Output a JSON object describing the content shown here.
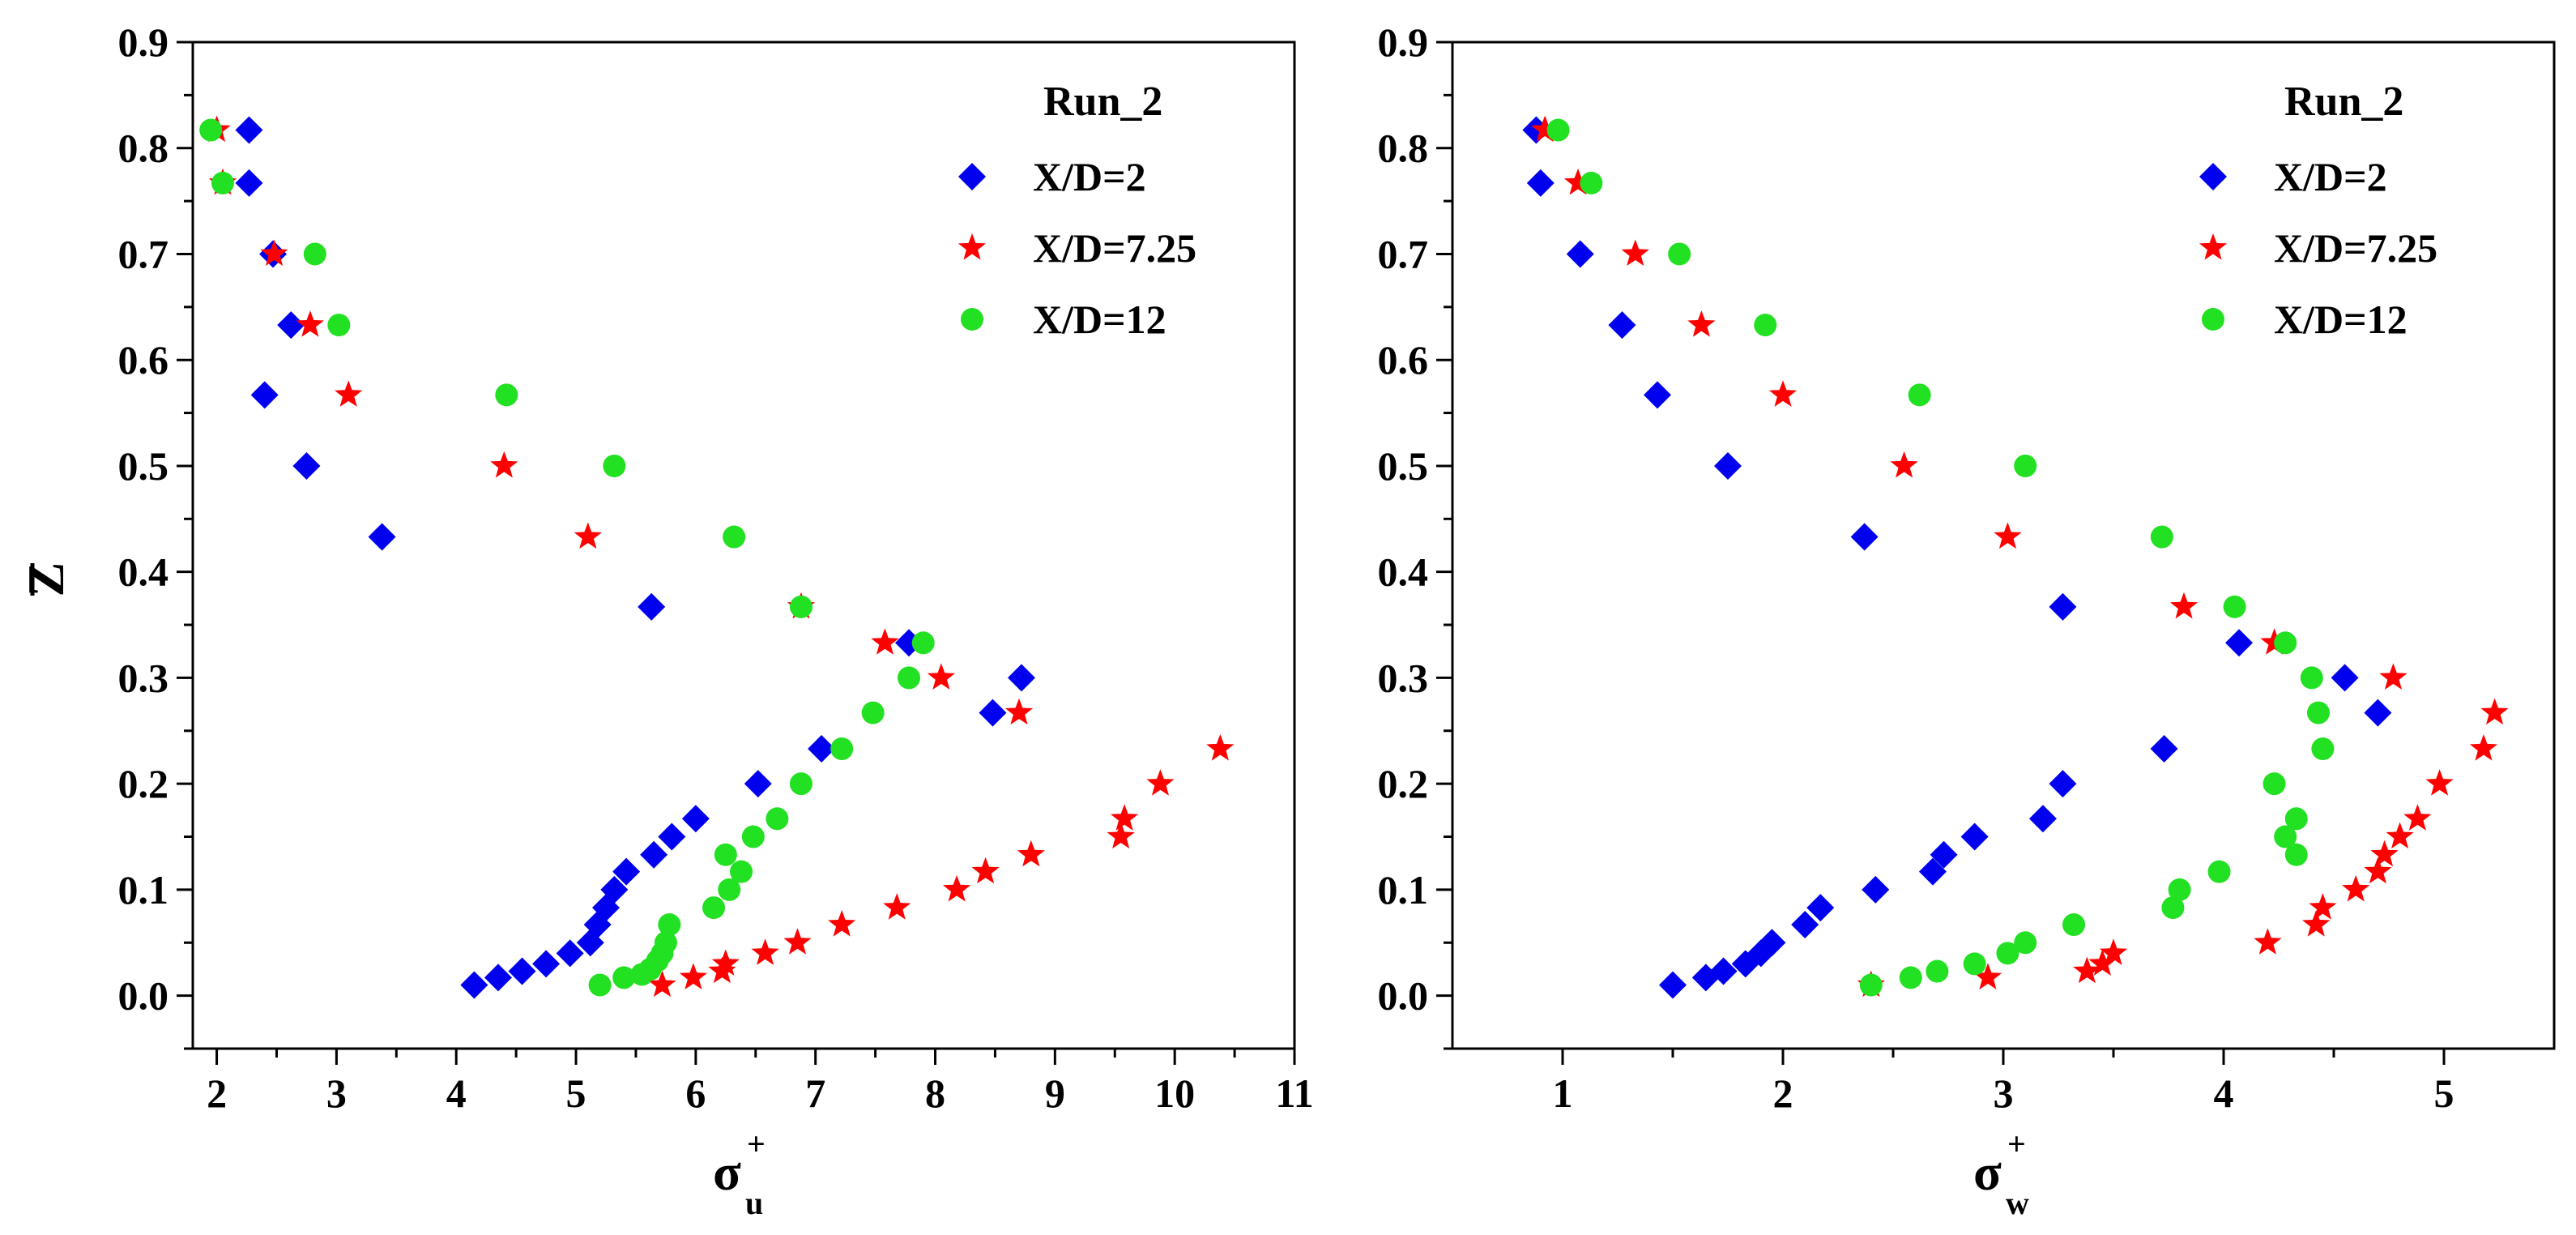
{
  "figure": {
    "run_label": "Run_2"
  },
  "chart_data": [
    {
      "type": "scatter",
      "id": "left",
      "title": "",
      "ylabel": "Z̅",
      "xlabel": {
        "symbol": "σ",
        "sup": "+",
        "sub": "u"
      },
      "xlim": [
        1.8,
        11
      ],
      "ylim": [
        -0.05,
        0.9
      ],
      "x_ticks": [
        2,
        3,
        4,
        5,
        6,
        7,
        8,
        9,
        10,
        11
      ],
      "y_ticks": [
        0.0,
        0.1,
        0.2,
        0.3,
        0.4,
        0.5,
        0.6,
        0.7,
        0.8,
        0.9
      ],
      "legend": {
        "title": "Run_2",
        "placement": "top-right"
      },
      "series": [
        {
          "name": "X/D=2",
          "color": "#0000ee",
          "marker": "diamond",
          "points": [
            [
              2.27,
              0.817
            ],
            [
              2.27,
              0.767
            ],
            [
              2.47,
              0.7
            ],
            [
              2.62,
              0.633
            ],
            [
              2.4,
              0.567
            ],
            [
              2.75,
              0.5
            ],
            [
              3.38,
              0.433
            ],
            [
              5.63,
              0.367
            ],
            [
              7.78,
              0.333
            ],
            [
              8.72,
              0.3
            ],
            [
              8.48,
              0.267
            ],
            [
              7.05,
              0.233
            ],
            [
              6.52,
              0.2
            ],
            [
              6.0,
              0.167
            ],
            [
              5.8,
              0.15
            ],
            [
              5.65,
              0.133
            ],
            [
              5.42,
              0.117
            ],
            [
              5.32,
              0.1
            ],
            [
              5.25,
              0.083
            ],
            [
              5.18,
              0.067
            ],
            [
              5.12,
              0.05
            ],
            [
              4.95,
              0.04
            ],
            [
              4.75,
              0.03
            ],
            [
              4.55,
              0.023
            ],
            [
              4.35,
              0.017
            ],
            [
              4.15,
              0.01
            ]
          ]
        },
        {
          "name": "X/D=7.25",
          "color": "#ff0000",
          "marker": "star",
          "points": [
            [
              2.0,
              0.817
            ],
            [
              2.05,
              0.767
            ],
            [
              2.48,
              0.7
            ],
            [
              2.78,
              0.633
            ],
            [
              3.1,
              0.567
            ],
            [
              4.4,
              0.5
            ],
            [
              5.1,
              0.433
            ],
            [
              6.88,
              0.367
            ],
            [
              7.58,
              0.333
            ],
            [
              8.05,
              0.3
            ],
            [
              8.7,
              0.267
            ],
            [
              10.38,
              0.233
            ],
            [
              9.88,
              0.2
            ],
            [
              9.58,
              0.167
            ],
            [
              9.55,
              0.15
            ],
            [
              8.8,
              0.133
            ],
            [
              8.42,
              0.117
            ],
            [
              8.18,
              0.1
            ],
            [
              7.68,
              0.083
            ],
            [
              7.22,
              0.067
            ],
            [
              6.85,
              0.05
            ],
            [
              6.58,
              0.04
            ],
            [
              6.25,
              0.03
            ],
            [
              6.22,
              0.023
            ],
            [
              5.98,
              0.017
            ],
            [
              5.72,
              0.01
            ]
          ]
        },
        {
          "name": "X/D=12",
          "color": "#22e022",
          "marker": "circle",
          "points": [
            [
              1.95,
              0.817
            ],
            [
              2.05,
              0.767
            ],
            [
              2.82,
              0.7
            ],
            [
              3.02,
              0.633
            ],
            [
              4.42,
              0.567
            ],
            [
              5.32,
              0.5
            ],
            [
              6.32,
              0.433
            ],
            [
              6.88,
              0.367
            ],
            [
              7.9,
              0.333
            ],
            [
              7.78,
              0.3
            ],
            [
              7.48,
              0.267
            ],
            [
              7.22,
              0.233
            ],
            [
              6.88,
              0.2
            ],
            [
              6.68,
              0.167
            ],
            [
              6.48,
              0.15
            ],
            [
              6.25,
              0.133
            ],
            [
              6.38,
              0.117
            ],
            [
              6.28,
              0.1
            ],
            [
              6.15,
              0.083
            ],
            [
              5.78,
              0.067
            ],
            [
              5.75,
              0.05
            ],
            [
              5.72,
              0.04
            ],
            [
              5.68,
              0.033
            ],
            [
              5.62,
              0.025
            ],
            [
              5.55,
              0.02
            ],
            [
              5.4,
              0.017
            ],
            [
              5.2,
              0.01
            ]
          ]
        }
      ]
    },
    {
      "type": "scatter",
      "id": "right",
      "title": "",
      "ylabel": "",
      "xlabel": {
        "symbol": "σ",
        "sup": "+",
        "sub": "w"
      },
      "xlim": [
        0.5,
        5.5
      ],
      "ylim": [
        -0.05,
        0.9
      ],
      "x_ticks": [
        1,
        2,
        3,
        4,
        5
      ],
      "y_ticks": [
        0.0,
        0.1,
        0.2,
        0.3,
        0.4,
        0.5,
        0.6,
        0.7,
        0.8,
        0.9
      ],
      "legend": {
        "title": "Run_2",
        "placement": "top-right"
      },
      "series": [
        {
          "name": "X/D=2",
          "color": "#0000ee",
          "marker": "diamond",
          "points": [
            [
              0.88,
              0.817
            ],
            [
              0.9,
              0.767
            ],
            [
              1.08,
              0.7
            ],
            [
              1.27,
              0.633
            ],
            [
              1.43,
              0.567
            ],
            [
              1.75,
              0.5
            ],
            [
              2.37,
              0.433
            ],
            [
              3.27,
              0.367
            ],
            [
              4.07,
              0.333
            ],
            [
              4.55,
              0.3
            ],
            [
              4.7,
              0.267
            ],
            [
              3.73,
              0.233
            ],
            [
              3.27,
              0.2
            ],
            [
              3.18,
              0.167
            ],
            [
              2.87,
              0.15
            ],
            [
              2.73,
              0.133
            ],
            [
              2.68,
              0.117
            ],
            [
              2.42,
              0.1
            ],
            [
              2.17,
              0.083
            ],
            [
              2.1,
              0.067
            ],
            [
              1.95,
              0.05
            ],
            [
              1.9,
              0.04
            ],
            [
              1.83,
              0.03
            ],
            [
              1.73,
              0.023
            ],
            [
              1.65,
              0.017
            ],
            [
              1.5,
              0.01
            ]
          ]
        },
        {
          "name": "X/D=7.25",
          "color": "#ff0000",
          "marker": "star",
          "points": [
            [
              0.92,
              0.817
            ],
            [
              1.07,
              0.767
            ],
            [
              1.33,
              0.7
            ],
            [
              1.63,
              0.633
            ],
            [
              2.0,
              0.567
            ],
            [
              2.55,
              0.5
            ],
            [
              3.02,
              0.433
            ],
            [
              3.82,
              0.367
            ],
            [
              4.23,
              0.333
            ],
            [
              4.77,
              0.3
            ],
            [
              5.23,
              0.267
            ],
            [
              5.18,
              0.233
            ],
            [
              4.98,
              0.2
            ],
            [
              4.88,
              0.167
            ],
            [
              4.8,
              0.15
            ],
            [
              4.73,
              0.133
            ],
            [
              4.7,
              0.117
            ],
            [
              4.45,
              0.083
            ],
            [
              4.6,
              0.1
            ],
            [
              4.42,
              0.067
            ],
            [
              4.2,
              0.05
            ],
            [
              3.5,
              0.04
            ],
            [
              3.45,
              0.03
            ],
            [
              3.38,
              0.023
            ],
            [
              2.93,
              0.017
            ],
            [
              2.4,
              0.01
            ]
          ]
        },
        {
          "name": "X/D=12",
          "color": "#22e022",
          "marker": "circle",
          "points": [
            [
              0.98,
              0.817
            ],
            [
              1.13,
              0.767
            ],
            [
              1.53,
              0.7
            ],
            [
              1.92,
              0.633
            ],
            [
              2.62,
              0.567
            ],
            [
              3.1,
              0.5
            ],
            [
              3.72,
              0.433
            ],
            [
              4.05,
              0.367
            ],
            [
              4.28,
              0.333
            ],
            [
              4.4,
              0.3
            ],
            [
              4.43,
              0.267
            ],
            [
              4.45,
              0.233
            ],
            [
              4.23,
              0.2
            ],
            [
              4.33,
              0.167
            ],
            [
              4.28,
              0.15
            ],
            [
              4.33,
              0.133
            ],
            [
              3.98,
              0.117
            ],
            [
              3.8,
              0.1
            ],
            [
              3.77,
              0.083
            ],
            [
              3.32,
              0.067
            ],
            [
              3.1,
              0.05
            ],
            [
              3.02,
              0.04
            ],
            [
              2.87,
              0.03
            ],
            [
              2.7,
              0.023
            ],
            [
              2.58,
              0.017
            ],
            [
              2.4,
              0.01
            ]
          ]
        }
      ]
    }
  ]
}
